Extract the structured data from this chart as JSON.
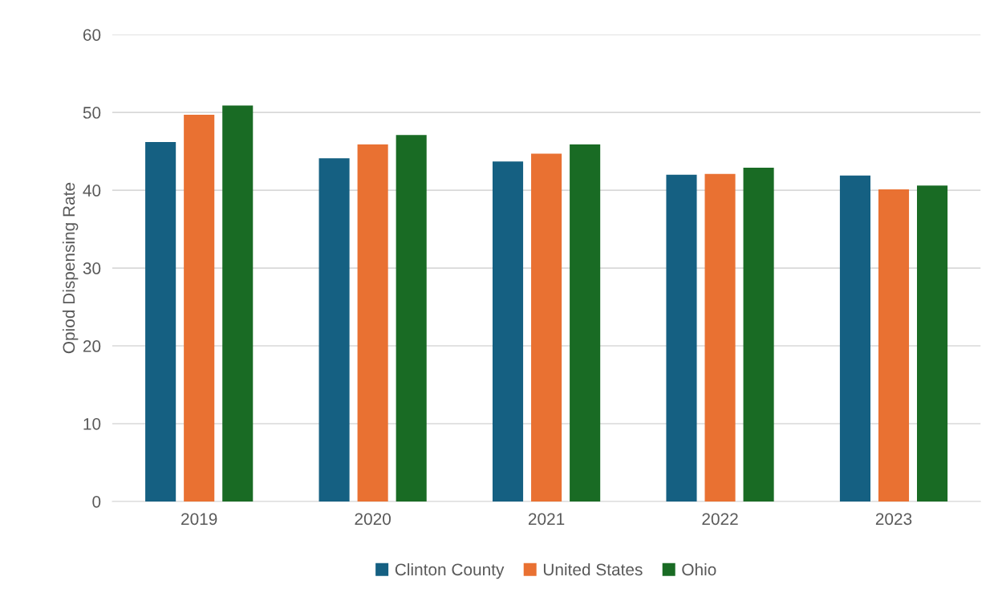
{
  "chart_data": {
    "type": "bar",
    "ylabel": "Opiod Dispensing Rate",
    "categories": [
      "2019",
      "2020",
      "2021",
      "2022",
      "2023"
    ],
    "series": [
      {
        "name": "Clinton County",
        "color": "#156082",
        "values": [
          46.2,
          44.1,
          43.7,
          42.0,
          41.9
        ]
      },
      {
        "name": "United States",
        "color": "#e97132",
        "values": [
          49.7,
          45.9,
          44.7,
          42.1,
          40.1
        ]
      },
      {
        "name": "Ohio",
        "color": "#196b24",
        "values": [
          50.9,
          47.1,
          45.9,
          42.9,
          40.6
        ]
      }
    ],
    "ylim": [
      0,
      60
    ],
    "yticks": [
      0,
      10,
      20,
      30,
      40,
      50,
      60
    ],
    "grid": "y",
    "legend": "bottom"
  }
}
